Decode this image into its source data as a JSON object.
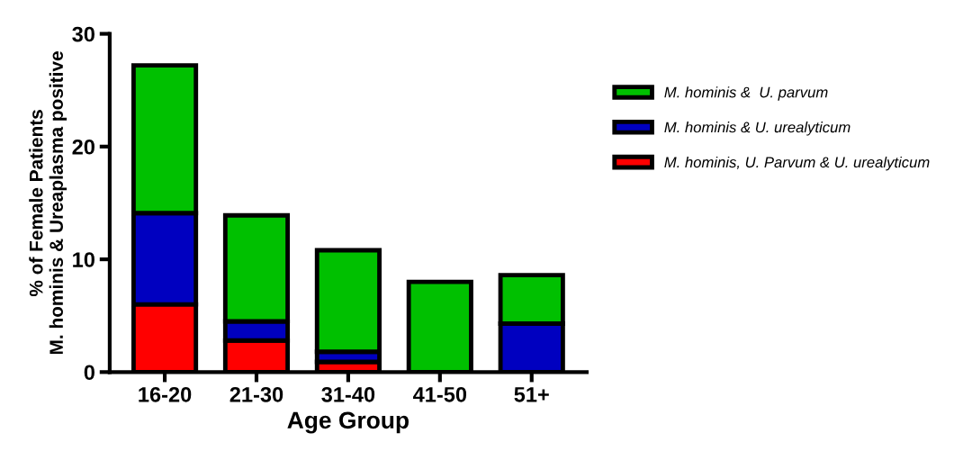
{
  "chart_data": {
    "type": "bar",
    "stacked": true,
    "xlabel": "Age Group",
    "ylabel": "% of Female Patients\nM. hominis & Ureaplasma positive",
    "categories": [
      "16-20",
      "21-30",
      "31-40",
      "41-50",
      "51+"
    ],
    "series": [
      {
        "name": "M. hominis, U. Parvum & U. urealyticum",
        "color": "#ff0000",
        "values": [
          6.0,
          2.8,
          0.9,
          0,
          0
        ]
      },
      {
        "name": "M. hominis & U. urealyticum",
        "color": "#0000c0",
        "values": [
          8.1,
          1.7,
          0.9,
          0,
          4.3
        ]
      },
      {
        "name": "M. hominis &  U. parvum",
        "color": "#00c000",
        "values": [
          13.1,
          9.4,
          9.0,
          8.0,
          4.3
        ]
      }
    ],
    "ylim": [
      0,
      30
    ],
    "yticks": [
      0,
      10,
      20,
      30
    ],
    "grid": false,
    "legend": "right"
  }
}
